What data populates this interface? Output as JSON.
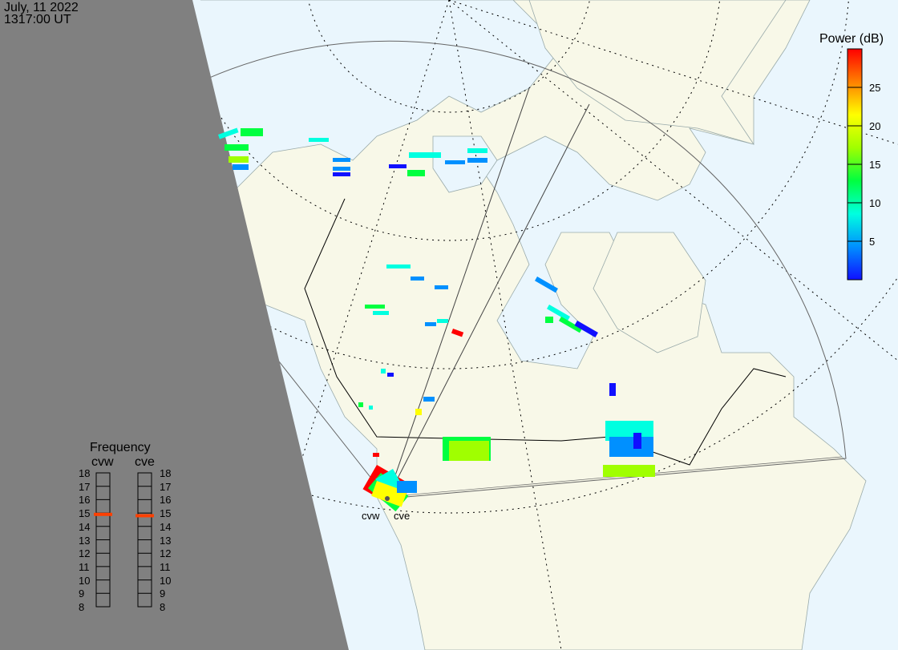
{
  "header": {
    "date": "July, 11 2022",
    "time": "1317:00 UT"
  },
  "colorbar": {
    "title": "Power (dB)",
    "range": [
      0,
      30
    ],
    "ticks": [
      "5",
      "10",
      "15",
      "20",
      "25"
    ],
    "colors": [
      "#1010ff",
      "#0090ff",
      "#00ffe0",
      "#00ff40",
      "#a0ff00",
      "#ffff00",
      "#ff8000",
      "#ff0000"
    ]
  },
  "frequency": {
    "title": "Frequency",
    "unit_range": [
      8,
      18
    ],
    "ticks": [
      "18",
      "17",
      "16",
      "15",
      "14",
      "13",
      "12",
      "11",
      "10",
      "9",
      "8"
    ],
    "radars": [
      {
        "name": "cvw",
        "value_mhz": 14.9
      },
      {
        "name": "cve",
        "value_mhz": 14.8
      }
    ],
    "marker_color": "#ff4000"
  },
  "map": {
    "radar_labels": [
      "cvw",
      "cve"
    ],
    "colors": {
      "ocean": "#eaf6fd",
      "land": "#f8f8e8",
      "night": "#808080",
      "coast": "#a0a0a0"
    }
  }
}
